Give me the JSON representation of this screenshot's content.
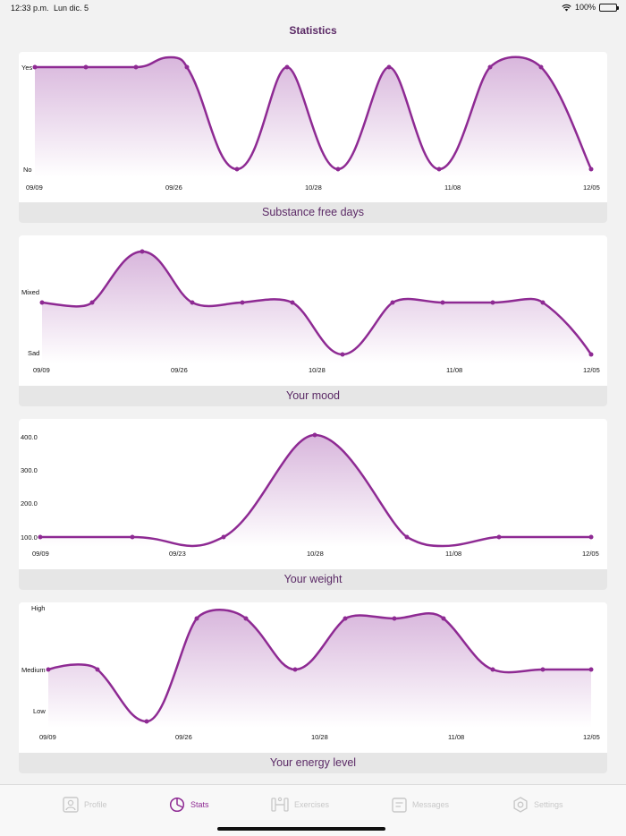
{
  "status_bar": {
    "time": "12:33 p.m.",
    "date": "Lun dic. 5",
    "battery": "100%"
  },
  "page": {
    "title": "Statistics"
  },
  "colors": {
    "accent": "#8e2a93",
    "fill_top": "#d8b6dc",
    "caption_text": "#5b2a66"
  },
  "charts": [
    {
      "caption": "Substance free days"
    },
    {
      "caption": "Your mood"
    },
    {
      "caption": "Your weight"
    },
    {
      "caption": "Your energy level"
    }
  ],
  "chart_data": [
    {
      "type": "line",
      "title": "Substance free days",
      "y_categories": [
        "No",
        "Yes"
      ],
      "y_tick_labels": [
        "Yes",
        "No"
      ],
      "x_tick_labels": [
        "09/09",
        "09/26",
        "10/28",
        "11/08",
        "12/05"
      ],
      "values": [
        "Yes",
        "Yes",
        "Yes",
        "Yes",
        "No",
        "Yes",
        "No",
        "Yes",
        "No",
        "Yes",
        "Yes",
        "No"
      ],
      "numeric_values": [
        1,
        1,
        1,
        1,
        0,
        1,
        0,
        1,
        0,
        1,
        1,
        0
      ]
    },
    {
      "type": "line",
      "title": "Your mood",
      "y_tick_labels": [
        "Mixed",
        "Sad"
      ],
      "x_tick_labels": [
        "09/09",
        "09/26",
        "10/28",
        "11/08",
        "12/05"
      ],
      "numeric_values": [
        1,
        1,
        2,
        1,
        1,
        1,
        0,
        1,
        1,
        1,
        1,
        0
      ]
    },
    {
      "type": "line",
      "title": "Your weight",
      "y_tick_labels": [
        "400.0",
        "300.0",
        "200.0",
        "100.0"
      ],
      "ylim": [
        100,
        400
      ],
      "x_tick_labels": [
        "09/09",
        "09/23",
        "10/28",
        "11/08",
        "12/05"
      ],
      "values": [
        100,
        100,
        100,
        400,
        100,
        100,
        100
      ]
    },
    {
      "type": "line",
      "title": "Your energy level",
      "y_tick_labels": [
        "High",
        "Medium",
        "Low"
      ],
      "x_tick_labels": [
        "09/09",
        "09/26",
        "10/28",
        "11/08",
        "12/05"
      ],
      "numeric_values": [
        1,
        1,
        0,
        2,
        2,
        1,
        2,
        2,
        2,
        1,
        1,
        1
      ]
    }
  ],
  "tabs": [
    {
      "label": "Profile",
      "icon": "person-card-icon",
      "active": false
    },
    {
      "label": "Stats",
      "icon": "pie-chart-icon",
      "active": true
    },
    {
      "label": "Exercises",
      "icon": "dumbbell-icon",
      "active": false
    },
    {
      "label": "Messages",
      "icon": "message-icon",
      "active": false
    },
    {
      "label": "Settings",
      "icon": "gear-icon",
      "active": false
    }
  ]
}
